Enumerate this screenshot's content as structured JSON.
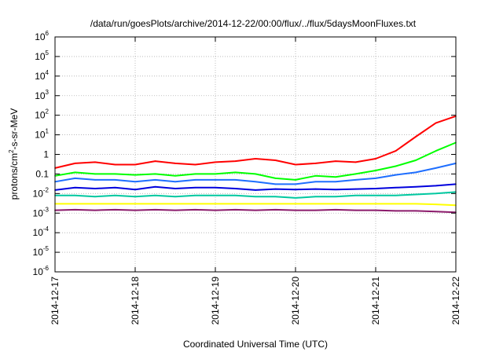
{
  "chart_data": {
    "type": "line",
    "title": "/data/run/goesPlots/archive/2014-12-22/00:00/flux/../flux/5daysMoonFluxes.txt",
    "xlabel": "Coordinated Universal Time (UTC)",
    "ylabel": {
      "base": "protons/cm",
      "exponent": "2",
      "rest": "-s-sr-MeV"
    },
    "y_scale": "log",
    "ylim": [
      1e-06,
      1000000.0
    ],
    "y_ticks": [
      {
        "value": 1e-06,
        "base": "10",
        "exp": "-6"
      },
      {
        "value": 1e-05,
        "base": "10",
        "exp": "-5"
      },
      {
        "value": 0.0001,
        "base": "10",
        "exp": "-4"
      },
      {
        "value": 0.001,
        "base": "10",
        "exp": "-3"
      },
      {
        "value": 0.01,
        "base": "10",
        "exp": "-2"
      },
      {
        "value": 0.1,
        "base": "",
        "exp": "",
        "text": "0.1"
      },
      {
        "value": 1,
        "base": "",
        "exp": "",
        "text": "1"
      },
      {
        "value": 10.0,
        "base": "10",
        "exp": "1"
      },
      {
        "value": 100.0,
        "base": "10",
        "exp": "2"
      },
      {
        "value": 1000.0,
        "base": "10",
        "exp": "3"
      },
      {
        "value": 10000.0,
        "base": "10",
        "exp": "4"
      },
      {
        "value": 100000.0,
        "base": "10",
        "exp": "5"
      },
      {
        "value": 1000000.0,
        "base": "10",
        "exp": "6"
      }
    ],
    "y_ticks_note": "",
    "xlim": [
      "2014-12-17",
      "2014-12-22"
    ],
    "x_ticks": [
      "2014-12-17",
      "2014-12-18",
      "2014-12-19",
      "2014-12-20",
      "2014-12-21",
      "2014-12-22"
    ],
    "grid": true,
    "x": [
      "2014-12-17 00:00",
      "2014-12-17 06:00",
      "2014-12-17 12:00",
      "2014-12-17 18:00",
      "2014-12-18 00:00",
      "2014-12-18 06:00",
      "2014-12-18 12:00",
      "2014-12-18 18:00",
      "2014-12-19 00:00",
      "2014-12-19 06:00",
      "2014-12-19 12:00",
      "2014-12-19 18:00",
      "2014-12-20 00:00",
      "2014-12-20 06:00",
      "2014-12-20 12:00",
      "2014-12-20 18:00",
      "2014-12-21 00:00",
      "2014-12-21 06:00",
      "2014-12-21 12:00",
      "2014-12-21 18:00",
      "2014-12-22 00:00"
    ],
    "series": [
      {
        "color": "#ff0000",
        "values": [
          0.2,
          0.35,
          0.4,
          0.3,
          0.3,
          0.45,
          0.35,
          0.3,
          0.4,
          0.45,
          0.6,
          0.5,
          0.3,
          0.35,
          0.45,
          0.4,
          0.6,
          1.5,
          8,
          40,
          90
        ]
      },
      {
        "color": "#00ff00",
        "values": [
          0.08,
          0.12,
          0.1,
          0.1,
          0.09,
          0.1,
          0.08,
          0.1,
          0.1,
          0.12,
          0.1,
          0.06,
          0.05,
          0.08,
          0.07,
          0.1,
          0.15,
          0.25,
          0.5,
          1.5,
          4
        ]
      },
      {
        "color": "#1e6eff",
        "values": [
          0.04,
          0.06,
          0.05,
          0.05,
          0.04,
          0.05,
          0.04,
          0.05,
          0.05,
          0.05,
          0.04,
          0.03,
          0.03,
          0.04,
          0.04,
          0.05,
          0.06,
          0.09,
          0.12,
          0.2,
          0.35
        ]
      },
      {
        "color": "#0000dd",
        "values": [
          0.015,
          0.02,
          0.018,
          0.02,
          0.016,
          0.022,
          0.018,
          0.02,
          0.02,
          0.018,
          0.015,
          0.017,
          0.016,
          0.017,
          0.016,
          0.017,
          0.018,
          0.02,
          0.022,
          0.025,
          0.03
        ]
      },
      {
        "color": "#00c8a0",
        "values": [
          0.008,
          0.008,
          0.007,
          0.008,
          0.007,
          0.008,
          0.007,
          0.008,
          0.008,
          0.008,
          0.007,
          0.007,
          0.006,
          0.007,
          0.007,
          0.008,
          0.008,
          0.008,
          0.009,
          0.01,
          0.012
        ]
      },
      {
        "color": "#ffff00",
        "values": [
          0.003,
          0.003,
          0.003,
          0.003,
          0.003,
          0.003,
          0.003,
          0.003,
          0.003,
          0.003,
          0.003,
          0.003,
          0.003,
          0.003,
          0.003,
          0.003,
          0.003,
          0.003,
          0.003,
          0.0028,
          0.0025
        ]
      },
      {
        "color": "#8b1a6b",
        "values": [
          0.0014,
          0.0015,
          0.0014,
          0.0015,
          0.0014,
          0.0015,
          0.0014,
          0.0015,
          0.0014,
          0.0015,
          0.0014,
          0.0015,
          0.0014,
          0.0014,
          0.0015,
          0.0014,
          0.0014,
          0.0013,
          0.0013,
          0.0012,
          0.0011
        ]
      }
    ]
  }
}
